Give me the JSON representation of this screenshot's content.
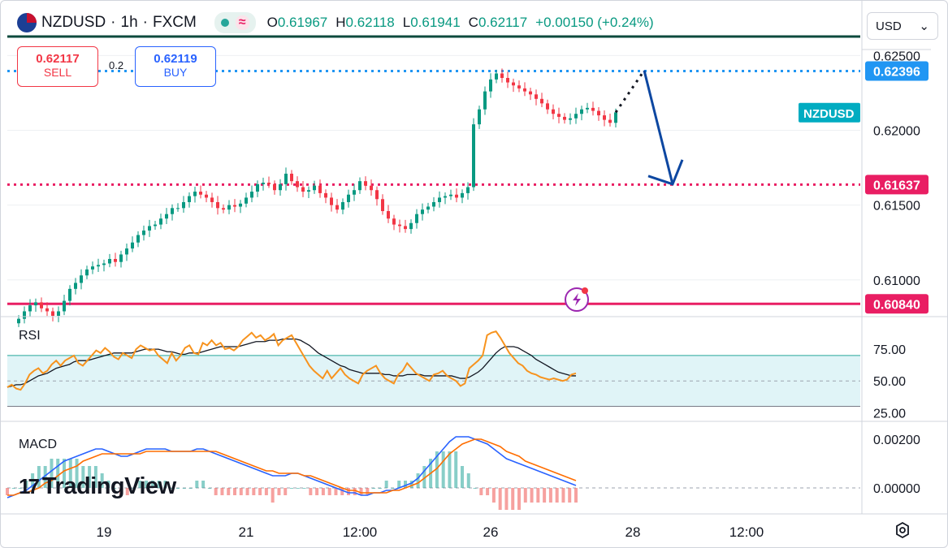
{
  "header": {
    "symbol": "NZDUSD",
    "sep1": "·",
    "interval": "1h",
    "sep2": "·",
    "exchange": "FXCM",
    "open_k": "O",
    "open": "0.61967",
    "high_k": "H",
    "high": "0.62118",
    "low_k": "L",
    "low": "0.61941",
    "close_k": "C",
    "close": "0.62117",
    "change": "+0.00150 (+0.24%)",
    "change_color": "#089981"
  },
  "trade": {
    "sell_price": "0.62117",
    "sell_label": "SELL",
    "spread": "0.2",
    "buy_price": "0.62119",
    "buy_label": "BUY"
  },
  "currency": {
    "selected": "USD"
  },
  "branding": {
    "name": "TradingView"
  },
  "icons": [
    "nz-flag-icon",
    "live-dot-icon",
    "waves-icon",
    "chevron-down-icon",
    "lightning-icon",
    "settings-icon"
  ],
  "colors": {
    "up": "#089981",
    "down": "#f23645",
    "level_pink": "#e91e63",
    "level_blue": "#2196f3",
    "arrow": "#0d47a1"
  },
  "chart_data": [
    {
      "type": "candlestick",
      "symbol_label": "NZDUSD",
      "price_axis": [
        "0.62500",
        "0.62000",
        "0.61500",
        "0.61000"
      ],
      "ylim": [
        0.6076,
        0.6254
      ],
      "time_axis": [
        {
          "label": "19",
          "i": 15
        },
        {
          "label": "21",
          "i": 40
        },
        {
          "label": "12:00",
          "i": 60
        },
        {
          "label": "26",
          "i": 83
        },
        {
          "label": "28",
          "i": 108
        },
        {
          "label": "12:00",
          "i": 128
        }
      ],
      "xlim": [
        -2,
        148
      ],
      "close": [
        0.6074,
        0.6079,
        0.6083,
        0.6085,
        0.6081,
        0.6079,
        0.6076,
        0.6079,
        0.6086,
        0.6094,
        0.6098,
        0.6103,
        0.6107,
        0.6109,
        0.611,
        0.6111,
        0.6114,
        0.6112,
        0.6117,
        0.6121,
        0.6125,
        0.613,
        0.6133,
        0.6136,
        0.6137,
        0.6141,
        0.6144,
        0.6148,
        0.6148,
        0.6152,
        0.6156,
        0.6159,
        0.6157,
        0.6155,
        0.6152,
        0.6148,
        0.6147,
        0.615,
        0.6149,
        0.6151,
        0.6155,
        0.6159,
        0.6164,
        0.6165,
        0.6164,
        0.616,
        0.6164,
        0.6171,
        0.6166,
        0.6162,
        0.6159,
        0.616,
        0.6163,
        0.6158,
        0.6155,
        0.615,
        0.6147,
        0.6152,
        0.6157,
        0.616,
        0.6166,
        0.6163,
        0.616,
        0.6154,
        0.6146,
        0.6141,
        0.6137,
        0.6136,
        0.6134,
        0.6138,
        0.6144,
        0.6147,
        0.6149,
        0.6152,
        0.6155,
        0.6156,
        0.6157,
        0.6155,
        0.6158,
        0.6162,
        0.6204,
        0.6214,
        0.6226,
        0.6234,
        0.6238,
        0.6235,
        0.6232,
        0.623,
        0.6228,
        0.6226,
        0.6224,
        0.6221,
        0.6218,
        0.6214,
        0.6211,
        0.6209,
        0.6207,
        0.6208,
        0.6211,
        0.6214,
        0.6215,
        0.6213,
        0.621,
        0.6207,
        0.6205,
        0.6212
      ],
      "levels": [
        {
          "price": "0.62396",
          "value": 0.62396,
          "style": "dotted",
          "color": "#2196f3"
        },
        {
          "price": "0.61637",
          "value": 0.61637,
          "style": "dotted",
          "color": "#e91e63"
        },
        {
          "price": "0.60840",
          "value": 0.6084,
          "style": "solid",
          "color": "#e91e63"
        }
      ],
      "projection": {
        "from_i": 105,
        "from": 0.6212,
        "peak_i": 110,
        "peak": 0.624,
        "to_i": 115,
        "to": 0.6164
      }
    },
    {
      "type": "line",
      "title": "RSI",
      "y_axis": [
        "75.00",
        "50.00",
        "25.00"
      ],
      "ylim": [
        22,
        100
      ],
      "band": [
        30,
        70
      ],
      "rsi": [
        45,
        47,
        44,
        43,
        48,
        55,
        58,
        60,
        56,
        58,
        63,
        66,
        62,
        66,
        68,
        70,
        64,
        62,
        66,
        70,
        74,
        72,
        76,
        73,
        69,
        67,
        72,
        70,
        68,
        75,
        78,
        76,
        74,
        75,
        70,
        67,
        64,
        72,
        66,
        70,
        76,
        78,
        72,
        71,
        80,
        78,
        82,
        78,
        80,
        75,
        76,
        74,
        77,
        82,
        85,
        88,
        84,
        86,
        82,
        84,
        87,
        78,
        82,
        84,
        86,
        80,
        74,
        68,
        62,
        58,
        55,
        52,
        58,
        52,
        56,
        60,
        55,
        52,
        50,
        48,
        55,
        58,
        60,
        62,
        56,
        52,
        50,
        48,
        55,
        58,
        64,
        60,
        56,
        54,
        52,
        50,
        55,
        56,
        58,
        54,
        52,
        50,
        46,
        48,
        60,
        63,
        66,
        70,
        86,
        88,
        89,
        84,
        78,
        72,
        68,
        64,
        62,
        58,
        56,
        55,
        53,
        52,
        51,
        52,
        51,
        50,
        51,
        55,
        56
      ],
      "ma": [
        45,
        46,
        47,
        47,
        48,
        50,
        52,
        54,
        55,
        56,
        58,
        60,
        61,
        62,
        63,
        65,
        66,
        66,
        66,
        67,
        68,
        69,
        70,
        71,
        72,
        72,
        72,
        72,
        72,
        73,
        74,
        75,
        75,
        75,
        75,
        74,
        73,
        73,
        72,
        71,
        71,
        72,
        72,
        72,
        73,
        74,
        75,
        76,
        77,
        77,
        77,
        77,
        77,
        78,
        79,
        80,
        81,
        81,
        81,
        82,
        82,
        82,
        83,
        83,
        83,
        83,
        82,
        80,
        78,
        75,
        72,
        70,
        68,
        66,
        64,
        62,
        61,
        59,
        58,
        57,
        56,
        56,
        56,
        56,
        56,
        55,
        55,
        54,
        54,
        54,
        55,
        55,
        55,
        55,
        54,
        54,
        54,
        54,
        54,
        54,
        54,
        53,
        52,
        52,
        53,
        55,
        57,
        60,
        64,
        68,
        72,
        75,
        77,
        77,
        77,
        76,
        74,
        72,
        70,
        67,
        65,
        63,
        61,
        59,
        57,
        56,
        55,
        54,
        54
      ]
    },
    {
      "type": "line",
      "title": "MACD",
      "y_axis": [
        "0.00200",
        "0.00000"
      ],
      "ylim": [
        -0.001,
        0.0026
      ],
      "macd": [
        -0.0004,
        -0.0003,
        -0.0002,
        -0.0001,
        0.0001,
        0.0003,
        0.0005,
        0.0007,
        0.0009,
        0.0011,
        0.0012,
        0.0013,
        0.0014,
        0.0015,
        0.0016,
        0.0016,
        0.0015,
        0.0014,
        0.0013,
        0.0013,
        0.0014,
        0.0015,
        0.0016,
        0.0016,
        0.0016,
        0.0016,
        0.0015,
        0.0015,
        0.0015,
        0.0015,
        0.0016,
        0.0016,
        0.0015,
        0.0014,
        0.0013,
        0.0012,
        0.0011,
        0.001,
        0.0009,
        0.0008,
        0.0007,
        0.0006,
        0.0005,
        0.0005,
        0.0005,
        0.0006,
        0.0006,
        0.0005,
        0.0004,
        0.0003,
        0.0002,
        0.0001,
        0.0,
        -0.0001,
        -0.0002,
        -0.0002,
        -0.0003,
        -0.0003,
        -0.0002,
        -0.0002,
        -0.0001,
        -0.0001,
        0.0,
        0.0001,
        0.0002,
        0.0004,
        0.0007,
        0.001,
        0.0013,
        0.0016,
        0.0019,
        0.0021,
        0.0021,
        0.0021,
        0.002,
        0.0019,
        0.0018,
        0.0016,
        0.0014,
        0.0012,
        0.0011,
        0.001,
        0.0009,
        0.0008,
        0.0007,
        0.0006,
        0.0005,
        0.0004,
        0.0003,
        0.0002,
        0.0001
      ],
      "signal": [
        -0.0003,
        -0.0003,
        -0.0002,
        -0.0002,
        -0.0001,
        0.0,
        0.0002,
        0.0003,
        0.0005,
        0.0007,
        0.0008,
        0.0009,
        0.0011,
        0.0012,
        0.0013,
        0.0014,
        0.0014,
        0.0014,
        0.0014,
        0.0014,
        0.0014,
        0.0014,
        0.0015,
        0.0015,
        0.0015,
        0.0015,
        0.0015,
        0.0015,
        0.0015,
        0.0015,
        0.0015,
        0.0015,
        0.0015,
        0.0015,
        0.0014,
        0.0013,
        0.0012,
        0.0011,
        0.001,
        0.0009,
        0.0008,
        0.0007,
        0.0007,
        0.0006,
        0.0006,
        0.0006,
        0.0006,
        0.0005,
        0.0005,
        0.0004,
        0.0003,
        0.0002,
        0.0001,
        0.0,
        -0.0001,
        -0.0001,
        -0.0002,
        -0.0002,
        -0.0002,
        -0.0002,
        -0.0002,
        -0.0001,
        -0.0001,
        0.0,
        0.0001,
        0.0002,
        0.0004,
        0.0006,
        0.0008,
        0.0011,
        0.0014,
        0.0016,
        0.0018,
        0.0019,
        0.002,
        0.002,
        0.0019,
        0.0018,
        0.0017,
        0.0015,
        0.0014,
        0.0013,
        0.0011,
        0.001,
        0.0009,
        0.0008,
        0.0007,
        0.0006,
        0.0005,
        0.0004,
        0.0003
      ]
    }
  ]
}
